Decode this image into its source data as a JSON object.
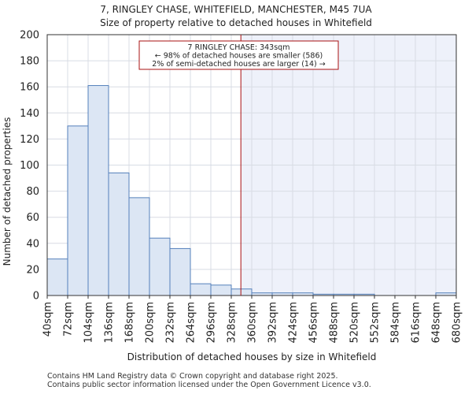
{
  "chart_data": {
    "type": "bar",
    "title": "7, RINGLEY CHASE, WHITEFIELD, MANCHESTER, M45 7UA",
    "subtitle": "Size of property relative to detached houses in Whitefield",
    "xlabel": "Distribution of detached houses by size in Whitefield",
    "ylabel": "Number of detached properties",
    "ylim": [
      0,
      200
    ],
    "yticks": [
      0,
      20,
      40,
      60,
      80,
      100,
      120,
      140,
      160,
      180,
      200
    ],
    "bin_edges": [
      40,
      72,
      104,
      136,
      168,
      200,
      232,
      264,
      296,
      328,
      360,
      392,
      424,
      456,
      488,
      520,
      552,
      584,
      616,
      648,
      680
    ],
    "tick_labels": [
      "40sqm",
      "72sqm",
      "104sqm",
      "136sqm",
      "168sqm",
      "200sqm",
      "232sqm",
      "264sqm",
      "296sqm",
      "328sqm",
      "360sqm",
      "392sqm",
      "424sqm",
      "456sqm",
      "488sqm",
      "520sqm",
      "552sqm",
      "584sqm",
      "616sqm",
      "648sqm",
      "680sqm"
    ],
    "values": [
      28,
      130,
      161,
      94,
      75,
      44,
      36,
      9,
      8,
      5,
      2,
      2,
      2,
      1,
      1,
      1,
      0,
      0,
      0,
      2
    ],
    "marker": {
      "value": 343,
      "color": "#aa1111",
      "label_lines": [
        "7 RINGLEY CHASE: 343sqm",
        "← 98% of detached houses are smaller (586)",
        "2% of semi-detached houses are larger (14) →"
      ]
    },
    "colors": {
      "bar_fill": "#dce6f4",
      "bar_stroke": "#5580bb",
      "highlight_region": "#eef1fa",
      "grid": "#d8dce4"
    },
    "grid": true
  },
  "footer": {
    "line1": "Contains HM Land Registry data © Crown copyright and database right 2025.",
    "line2": "Contains public sector information licensed under the Open Government Licence v3.0."
  }
}
